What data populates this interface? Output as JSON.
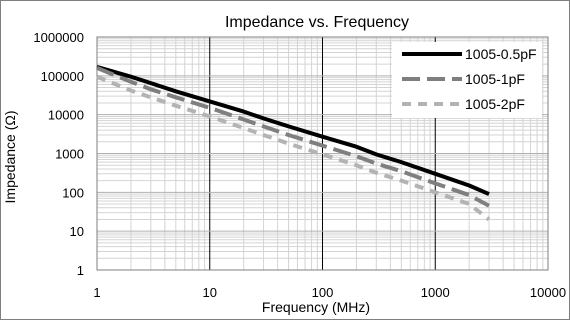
{
  "chart_data": {
    "type": "line",
    "title": "Impedance vs. Frequency",
    "xlabel": "Frequency (MHz)",
    "ylabel": "Impedance (Ω)",
    "x_scale": "log",
    "y_scale": "log",
    "xlim": [
      1,
      10000
    ],
    "ylim": [
      1,
      1000000
    ],
    "x_ticks": [
      "1",
      "10",
      "100",
      "1000",
      "10000"
    ],
    "y_ticks": [
      "1",
      "10",
      "100",
      "1000",
      "10000",
      "100000",
      "1000000"
    ],
    "grid": true,
    "legend_position": "top-right",
    "series": [
      {
        "name": "1005-0.5pF",
        "color": "#000000",
        "style": "solid",
        "x": [
          1,
          2,
          3,
          5,
          10,
          20,
          30,
          50,
          100,
          200,
          300,
          500,
          1000,
          2000,
          3000
        ],
        "values": [
          170000,
          95000,
          65000,
          40000,
          22000,
          12000,
          8000,
          5000,
          2700,
          1500,
          950,
          600,
          300,
          150,
          90
        ]
      },
      {
        "name": "1005-1pF",
        "color": "#7f7f7f",
        "style": "dashed",
        "x": [
          1,
          2,
          3,
          5,
          10,
          20,
          30,
          50,
          100,
          200,
          300,
          500,
          1000,
          2000,
          3000
        ],
        "values": [
          160000,
          70000,
          45000,
          28000,
          15000,
          7500,
          5000,
          3000,
          1600,
          850,
          550,
          350,
          170,
          85,
          45
        ]
      },
      {
        "name": "1005-2pF",
        "color": "#b3b3b3",
        "style": "dashed",
        "x": [
          1,
          2,
          3,
          5,
          10,
          20,
          30,
          50,
          100,
          200,
          300,
          500,
          1000,
          2000,
          3000
        ],
        "values": [
          95000,
          42000,
          28000,
          17000,
          9000,
          4500,
          3000,
          1800,
          950,
          500,
          320,
          200,
          100,
          50,
          20
        ]
      }
    ]
  }
}
